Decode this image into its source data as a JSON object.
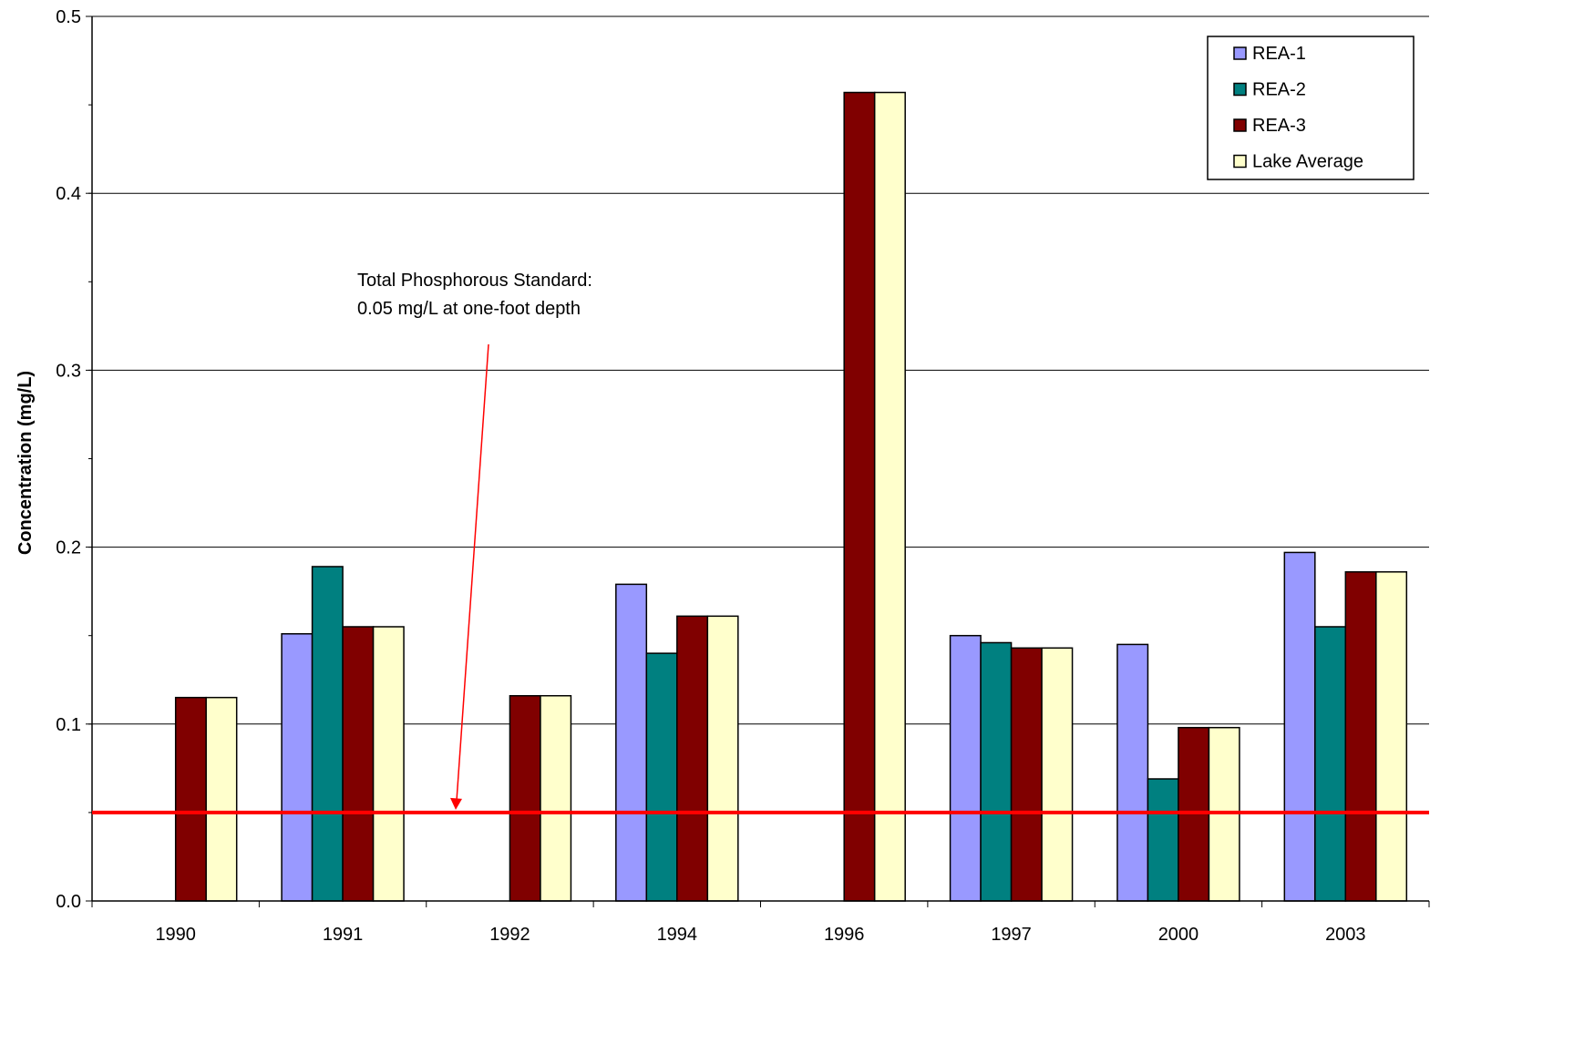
{
  "chart_data": {
    "type": "bar",
    "title": "",
    "xlabel": "",
    "ylabel": "Concentration (mg/L)",
    "ylim": [
      0,
      0.5
    ],
    "y_ticks": [
      "0.0",
      "0.1",
      "0.2",
      "0.3",
      "0.4",
      "0.5"
    ],
    "y_tick_values": [
      0,
      0.1,
      0.2,
      0.3,
      0.4,
      0.5
    ],
    "y_minor_step": 0.05,
    "grid": "horizontal major gridlines",
    "legend": "top-right",
    "categories": [
      "1990",
      "1991",
      "1992",
      "1994",
      "1996",
      "1997",
      "2000",
      "2003"
    ],
    "series": [
      {
        "name": "REA-1",
        "color": "#9999ff",
        "values": [
          null,
          0.151,
          null,
          0.179,
          null,
          0.15,
          0.145,
          0.197
        ]
      },
      {
        "name": "REA-2",
        "color": "#008080",
        "values": [
          null,
          0.189,
          null,
          0.14,
          null,
          0.146,
          0.069,
          0.155
        ]
      },
      {
        "name": "REA-3",
        "color": "#800000",
        "values": [
          0.115,
          0.155,
          0.116,
          0.161,
          0.457,
          0.143,
          0.098,
          0.186
        ]
      },
      {
        "name": "Lake Average",
        "color": "#ffffcc",
        "values": [
          0.115,
          0.155,
          0.116,
          0.161,
          0.457,
          0.143,
          0.098,
          0.186
        ]
      }
    ],
    "reference_line": {
      "value": 0.05,
      "color": "#ff0000"
    },
    "annotation": {
      "lines": [
        "Total Phosphorous Standard:",
        "0.05 mg/L at one-foot depth"
      ],
      "arrow_color": "#ff0000"
    }
  }
}
